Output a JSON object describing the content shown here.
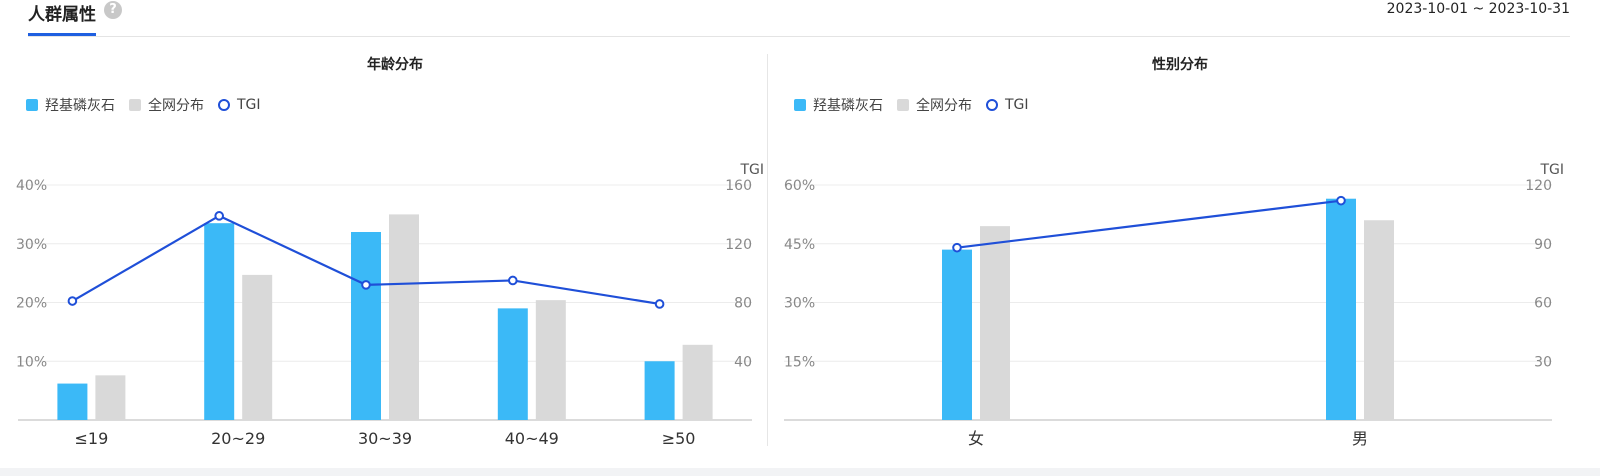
{
  "header": {
    "title": "人群属性",
    "help_icon": "?",
    "date_range": "2023-10-01 ~ 2023-10-31"
  },
  "legend": {
    "product": "羟基磷灰石",
    "market": "全网分布",
    "tgi": "TGI"
  },
  "colors": {
    "product": "#3bb9f7",
    "market": "#d9d9d9",
    "tgi": "#1f4fd8"
  },
  "chart_data": [
    {
      "type": "bar",
      "title": "年龄分布",
      "categories": [
        "≤19",
        "20~29",
        "30~39",
        "40~49",
        "≥50"
      ],
      "series": [
        {
          "name": "羟基磷灰石",
          "values": [
            6.2,
            33.5,
            32,
            19,
            10
          ]
        },
        {
          "name": "全网分布",
          "values": [
            7.6,
            24.7,
            35,
            20.4,
            12.8
          ]
        }
      ],
      "line": {
        "name": "TGI",
        "values": [
          81,
          139,
          92,
          95,
          79
        ]
      },
      "ylim": [
        0,
        40
      ],
      "yticks": [
        "10%",
        "20%",
        "30%",
        "40%"
      ],
      "y2label": "TGI",
      "y2lim": [
        0,
        160
      ],
      "y2ticks": [
        "40",
        "80",
        "120",
        "160"
      ]
    },
    {
      "type": "bar",
      "title": "性别分布",
      "categories": [
        "女",
        "男"
      ],
      "series": [
        {
          "name": "羟基磷灰石",
          "values": [
            43.5,
            56.5
          ]
        },
        {
          "name": "全网分布",
          "values": [
            49.5,
            51
          ]
        }
      ],
      "line": {
        "name": "TGI",
        "values": [
          88,
          112
        ]
      },
      "ylim": [
        0,
        60
      ],
      "yticks": [
        "15%",
        "30%",
        "45%",
        "60%"
      ],
      "y2label": "TGI",
      "y2lim": [
        0,
        120
      ],
      "y2ticks": [
        "30",
        "60",
        "90",
        "120"
      ]
    }
  ]
}
